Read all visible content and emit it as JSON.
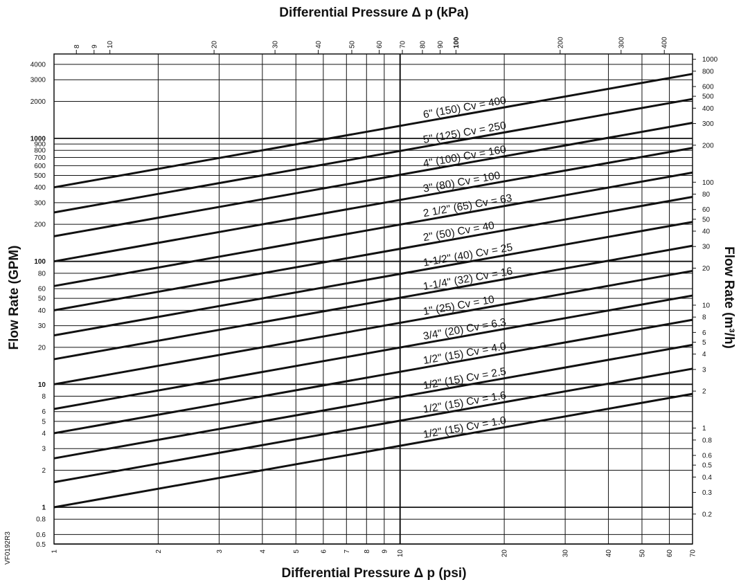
{
  "figure_code": "VF0192R3",
  "chart_data": {
    "type": "line",
    "title_top": "Differential Pressure Δ p (kPa)",
    "xlabel": "Differential Pressure Δ p (psi)",
    "ylabel_left": "Flow Rate (GPM)",
    "ylabel_right": "Flow Rate (m³/h)",
    "x_scale": "log",
    "y_scale": "log",
    "xlim": [
      1,
      70
    ],
    "ylim": [
      0.5,
      5000
    ],
    "grid": true,
    "x_ticks": [
      "1",
      "2",
      "3",
      "4",
      "5",
      "6",
      "7",
      "8",
      "9",
      "10",
      "20",
      "30",
      "40",
      "50",
      "60",
      "70"
    ],
    "x_ticks_top_kpa": [
      "8",
      "9",
      "10",
      "20",
      "30",
      "40",
      "50",
      "60",
      "70",
      "80",
      "90",
      "100",
      "200",
      "300",
      "400"
    ],
    "y_ticks_left": [
      "0.5",
      "0.6",
      "0.8",
      "1",
      "2",
      "3",
      "4",
      "5",
      "6",
      "8",
      "10",
      "20",
      "30",
      "40",
      "50",
      "60",
      "80",
      "100",
      "200",
      "300",
      "400",
      "500",
      "600",
      "700",
      "800",
      "900",
      "1000",
      "2000",
      "3000",
      "4000"
    ],
    "y_ticks_right": [
      "0.2",
      "0.3",
      "0.4",
      "0.5",
      "0.6",
      "0.8",
      "1",
      "2",
      "3",
      "4",
      "5",
      "6",
      "8",
      "10",
      "20",
      "30",
      "40",
      "50",
      "60",
      "80",
      "100",
      "200",
      "300",
      "400",
      "500",
      "600",
      "800",
      "1000"
    ],
    "relation": "Flow (GPM) = Cv × √Δp (psi)",
    "series": [
      {
        "name": "6\" (150) Cv = 400",
        "cv": 400
      },
      {
        "name": "5\" (125) Cv = 250",
        "cv": 250
      },
      {
        "name": "4\" (100) Cv = 160",
        "cv": 160
      },
      {
        "name": "3\" (80) Cv = 100",
        "cv": 100
      },
      {
        "name": "2 1/2\" (65) Cv = 63",
        "cv": 63
      },
      {
        "name": "2\" (50) Cv = 40",
        "cv": 40
      },
      {
        "name": "1-1/2\" (40) Cv = 25",
        "cv": 25
      },
      {
        "name": "1-1/4\" (32) Cv = 16",
        "cv": 16
      },
      {
        "name": "1\" (25) Cv = 10",
        "cv": 10
      },
      {
        "name": "3/4\" (20) Cv = 6.3",
        "cv": 6.3
      },
      {
        "name": "1/2\" (15) Cv = 4.0",
        "cv": 4.0
      },
      {
        "name": "1/2\" (15) Cv = 2.5",
        "cv": 2.5
      },
      {
        "name": "1/2\" (15) Cv = 1.6",
        "cv": 1.6
      },
      {
        "name": "1/2\" (15) Cv = 1.0",
        "cv": 1.0
      }
    ]
  }
}
